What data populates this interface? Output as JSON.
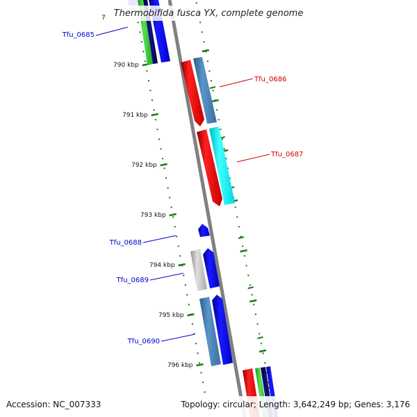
{
  "title": "Thermobifida fusca YX, complete genome",
  "title_fragment": "7l",
  "accession_text": "Accession: NC_007333",
  "summary_text": "Topology: circular; Length: 3,642,249 bp; Genes: 3,176",
  "colors": {
    "backbone": "#808080",
    "tick": "#1a7a1a",
    "label_forward": "#0000cc",
    "label_reverse": "#cc0000"
  },
  "ticks": [
    {
      "label": "790 kbp"
    },
    {
      "label": "791 kbp"
    },
    {
      "label": "792 kbp"
    },
    {
      "label": "793 kbp"
    },
    {
      "label": "794 kbp"
    },
    {
      "label": "795 kbp"
    },
    {
      "label": "796 kbp"
    }
  ],
  "gene_labels": [
    {
      "name": "Tfu_0685",
      "color": "#0000cc"
    },
    {
      "name": "Tfu_0686",
      "color": "#cc0000"
    },
    {
      "name": "Tfu_0687",
      "color": "#cc0000"
    },
    {
      "name": "Tfu_0688",
      "color": "#0000cc"
    },
    {
      "name": "Tfu_0689",
      "color": "#0000cc"
    },
    {
      "name": "Tfu_0690",
      "color": "#0000cc"
    }
  ]
}
